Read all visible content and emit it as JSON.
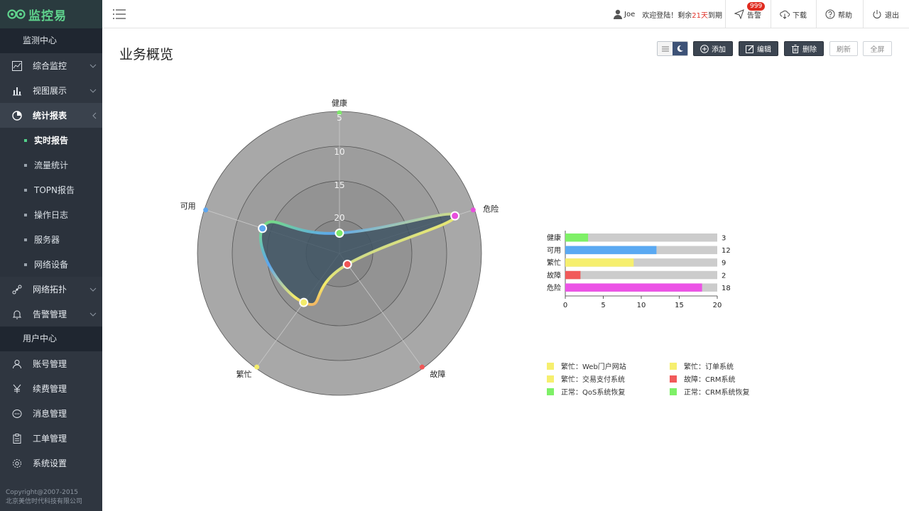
{
  "app": {
    "logo_text": "监控易"
  },
  "sidebar": {
    "section1": "监测中心",
    "items": [
      {
        "label": "综合监控",
        "icon": "monitor-chart-icon"
      },
      {
        "label": "视图展示",
        "icon": "bar-chart-icon"
      },
      {
        "label": "统计报表",
        "icon": "pie-chart-icon"
      }
    ],
    "sub_items": [
      {
        "label": "实时报告"
      },
      {
        "label": "流量统计"
      },
      {
        "label": "TOPN报告"
      },
      {
        "label": "操作日志"
      },
      {
        "label": "服务器"
      },
      {
        "label": "网络设备"
      }
    ],
    "items2": [
      {
        "label": "网络拓扑",
        "icon": "topology-icon"
      },
      {
        "label": "告警管理",
        "icon": "bell-icon"
      }
    ],
    "section2": "用户中心",
    "items3": [
      {
        "label": "账号管理",
        "icon": "user-icon"
      },
      {
        "label": "续费管理",
        "icon": "yuan-icon"
      },
      {
        "label": "消息管理",
        "icon": "message-icon"
      },
      {
        "label": "工单管理",
        "icon": "clipboard-icon"
      },
      {
        "label": "系统设置",
        "icon": "gear-icon"
      }
    ],
    "copyright_line1": "Copyright@2007-2015",
    "copyright_line2": "北京美信时代科技有限公司"
  },
  "topbar": {
    "username": "Joe",
    "welcome_prefix": "欢迎登陆！剩余",
    "days": "21天",
    "welcome_suffix": "到期",
    "alert_label": "告警",
    "alert_count": "999",
    "download_label": "下载",
    "help_label": "帮助",
    "logout_label": "退出"
  },
  "main": {
    "title": "业务概览",
    "toolbar": {
      "add": "添加",
      "edit": "编辑",
      "delete": "删除",
      "refresh": "刷新",
      "fullscreen": "全屏"
    }
  },
  "chart_data": [
    {
      "type": "radar",
      "indicators": [
        "健康",
        "危险",
        "故障",
        "繁忙",
        "可用"
      ],
      "max": 20,
      "ring_labels": [
        "5",
        "10",
        "15",
        "20"
      ],
      "values": [
        3,
        18,
        2,
        9,
        12
      ],
      "colors": [
        "#7de86a",
        "#e84fdc",
        "#f05656",
        "#f3ec6a",
        "#5ba6f0"
      ]
    },
    {
      "type": "bar",
      "orientation": "horizontal",
      "categories": [
        "健康",
        "可用",
        "繁忙",
        "故障",
        "危险"
      ],
      "values": [
        3,
        12,
        9,
        2,
        18
      ],
      "colors": [
        "#7ef067",
        "#5aa9f2",
        "#f6ef6e",
        "#f15a5a",
        "#ec53e6"
      ],
      "xlim": [
        0,
        20
      ],
      "ticks": [
        "0",
        "5",
        "10",
        "15",
        "20"
      ]
    }
  ],
  "legend": [
    {
      "label": "繁忙：Web门户网站",
      "color": "#f6ef6e"
    },
    {
      "label": "繁忙：订单系统",
      "color": "#f6ef6e"
    },
    {
      "label": "繁忙：交易支付系统",
      "color": "#f6ef6e"
    },
    {
      "label": "故障：CRM系统",
      "color": "#f15a5a"
    },
    {
      "label": "正常：QoS系统恢复",
      "color": "#7ef067"
    },
    {
      "label": "正常：CRM系统恢复",
      "color": "#7ef067"
    }
  ]
}
